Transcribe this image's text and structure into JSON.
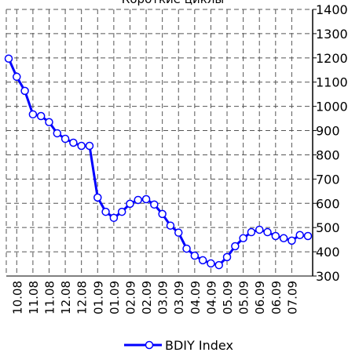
{
  "chart_data": {
    "type": "line",
    "title": "Короткие циклы",
    "categories": [
      null,
      "10.08",
      null,
      "11.08",
      null,
      "11.08",
      null,
      "12.08",
      null,
      "12.08",
      null,
      "01.09",
      null,
      "01.09",
      null,
      "02.09",
      null,
      "02.09",
      null,
      "03.09",
      null,
      "03.09",
      null,
      "04.09",
      null,
      "04.09",
      null,
      "05.09",
      null,
      "05.09",
      null,
      "06.09",
      null,
      "06.09",
      null,
      "07.09",
      null,
      null
    ],
    "series": [
      {
        "name": "BDIY Index",
        "color": "#0000ff",
        "values": [
          1197,
          1122,
          1064,
          967,
          960,
          935,
          889,
          866,
          850,
          837,
          837,
          624,
          565,
          540,
          565,
          598,
          614,
          617,
          595,
          556,
          508,
          479,
          413,
          384,
          365,
          352,
          345,
          378,
          423,
          456,
          481,
          491,
          481,
          465,
          456,
          446,
          469,
          465
        ]
      }
    ],
    "ylim": [
      300,
      1400
    ],
    "yticks": [
      300,
      400,
      500,
      600,
      700,
      800,
      900,
      1000,
      1100,
      1200,
      1300,
      1400
    ],
    "grid": true,
    "legend": "bottom"
  }
}
